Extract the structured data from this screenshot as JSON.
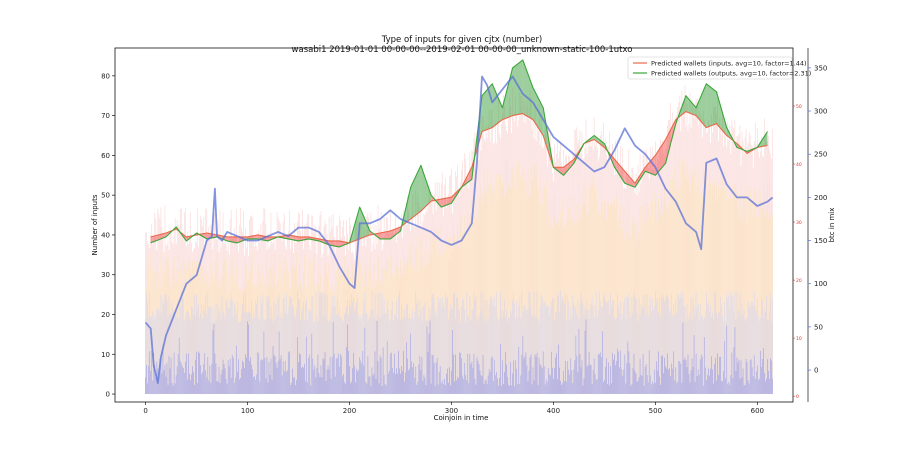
{
  "chart_data": {
    "type": "line",
    "title": "Type of inputs for given cjtx (number)",
    "subtitle": "wasabi1 2019-01-01 00-00-00--2019-02-01 00-00-00_unknown-static-100-1utxo",
    "xlabel": "Coinjoin in time",
    "ylabel": "Number of inputs",
    "y2label": "btc in mix",
    "xlim": [
      -30,
      635
    ],
    "ylim": [
      -2,
      87
    ],
    "y2lim": [
      -37,
      373
    ],
    "y3lim": [
      -1,
      60
    ],
    "grid": false,
    "legend_position": "top-right",
    "x_ticks": [
      "0",
      "100",
      "200",
      "300",
      "400",
      "500",
      "600"
    ],
    "x_tick_values": [
      0,
      100,
      200,
      300,
      400,
      500,
      600
    ],
    "y_ticks": [
      "0",
      "10",
      "20",
      "30",
      "40",
      "50",
      "60",
      "70",
      "80"
    ],
    "y_tick_values": [
      0,
      10,
      20,
      30,
      40,
      50,
      60,
      70,
      80
    ],
    "y2_ticks": [
      "0",
      "50",
      "100",
      "150",
      "200",
      "250",
      "300",
      "350"
    ],
    "y2_tick_values": [
      0,
      50,
      100,
      150,
      200,
      250,
      300,
      350
    ],
    "y3_ticks": [
      "0",
      "10",
      "20",
      "30",
      "40",
      "50"
    ],
    "y3_tick_values": [
      0,
      10,
      20,
      30,
      40,
      50
    ],
    "series": [
      {
        "name": "Predicted wallets (inputs, avg=10, factor=1.44)",
        "color": "#e8694a",
        "x": [
          5,
          20,
          30,
          40,
          50,
          60,
          70,
          80,
          90,
          100,
          110,
          120,
          130,
          140,
          150,
          160,
          170,
          180,
          190,
          200,
          210,
          220,
          230,
          240,
          250,
          260,
          270,
          280,
          290,
          300,
          310,
          320,
          330,
          340,
          350,
          360,
          370,
          380,
          390,
          400,
          410,
          420,
          430,
          440,
          450,
          460,
          470,
          480,
          490,
          500,
          510,
          520,
          530,
          540,
          550,
          560,
          570,
          580,
          590,
          600,
          610
        ],
        "values": [
          39.5,
          40.5,
          41.5,
          39.5,
          40,
          40.5,
          40,
          39.5,
          39.5,
          39.5,
          40,
          39.5,
          39.5,
          40,
          39.5,
          39.5,
          39,
          38.5,
          38.5,
          38,
          39,
          40,
          40.5,
          41,
          42,
          44,
          46,
          48.5,
          49,
          49.5,
          52,
          57,
          66,
          67,
          69,
          70,
          70.5,
          69,
          65,
          57,
          57,
          59,
          63,
          64,
          62,
          59,
          56,
          53,
          57,
          60,
          64,
          69,
          71,
          70,
          67,
          68,
          65,
          63,
          60.5,
          62,
          62.5
        ]
      },
      {
        "name": "Predicted wallets (outputs, avg=10, factor=2.31)",
        "color": "#3aa63a",
        "x": [
          5,
          20,
          30,
          40,
          50,
          60,
          70,
          80,
          90,
          100,
          110,
          120,
          130,
          140,
          150,
          160,
          170,
          180,
          190,
          200,
          210,
          220,
          230,
          240,
          250,
          260,
          270,
          280,
          290,
          300,
          310,
          320,
          330,
          340,
          350,
          360,
          370,
          380,
          390,
          400,
          410,
          420,
          430,
          440,
          450,
          460,
          470,
          480,
          490,
          500,
          510,
          520,
          530,
          540,
          550,
          560,
          570,
          580,
          590,
          600,
          610
        ],
        "values": [
          38,
          39.5,
          42,
          38.5,
          40.5,
          39,
          39.5,
          38.5,
          38,
          39,
          39,
          38.5,
          39.5,
          39,
          38.5,
          39,
          38.5,
          37.5,
          37,
          38,
          47,
          41,
          39,
          39,
          41,
          52,
          57.5,
          50,
          47,
          48,
          52,
          54,
          75,
          78,
          72,
          82,
          84,
          77,
          72,
          57,
          55,
          58,
          63,
          65,
          63,
          57,
          53,
          52,
          56,
          55,
          58,
          68,
          75,
          72,
          78,
          76,
          67,
          62,
          61,
          62,
          66
        ]
      },
      {
        "name": "btc in mix",
        "axis": "y2",
        "color": "#5b72d6",
        "x": [
          0,
          5,
          8,
          12,
          15,
          20,
          30,
          40,
          50,
          60,
          65,
          68,
          70,
          75,
          80,
          90,
          100,
          110,
          120,
          130,
          140,
          150,
          160,
          170,
          180,
          190,
          200,
          205,
          210,
          220,
          230,
          240,
          250,
          260,
          270,
          280,
          290,
          300,
          310,
          320,
          325,
          330,
          335,
          340,
          350,
          360,
          370,
          380,
          390,
          400,
          410,
          420,
          430,
          440,
          450,
          460,
          470,
          480,
          490,
          500,
          510,
          520,
          530,
          540,
          545,
          550,
          560,
          570,
          580,
          590,
          600,
          610,
          615
        ],
        "values": [
          55,
          48,
          5,
          -15,
          15,
          40,
          70,
          100,
          110,
          150,
          155,
          210,
          155,
          150,
          160,
          155,
          150,
          150,
          155,
          160,
          155,
          165,
          165,
          160,
          145,
          120,
          100,
          95,
          170,
          170,
          175,
          185,
          175,
          170,
          165,
          160,
          150,
          145,
          150,
          170,
          240,
          340,
          330,
          310,
          325,
          340,
          320,
          310,
          290,
          270,
          260,
          250,
          240,
          230,
          235,
          255,
          280,
          260,
          250,
          235,
          210,
          195,
          170,
          160,
          140,
          240,
          245,
          215,
          200,
          200,
          190,
          195,
          200
        ]
      }
    ]
  }
}
